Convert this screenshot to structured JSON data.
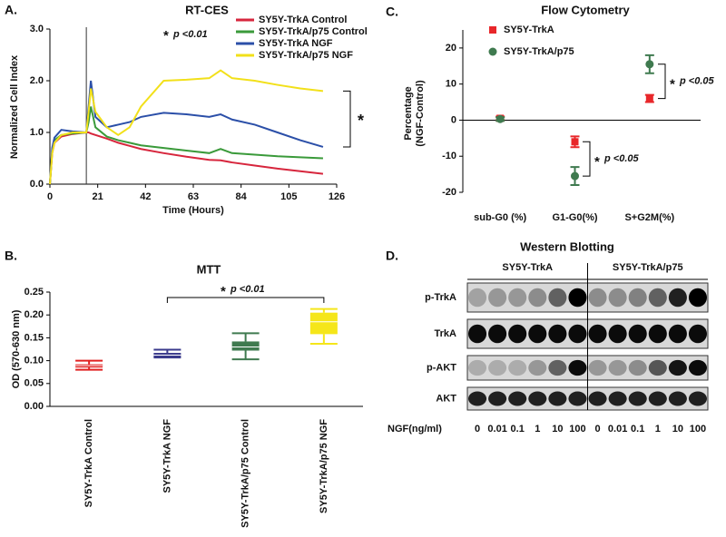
{
  "chart_data": [
    {
      "type": "line",
      "panel": "A.",
      "title": "RT-CES",
      "xlabel": "Time (Hours)",
      "ylabel": "Normalized Cell Index",
      "x": [
        0,
        1,
        2,
        5,
        10,
        16,
        17,
        18,
        20,
        25,
        30,
        35,
        40,
        50,
        60,
        70,
        75,
        80,
        90,
        100,
        110,
        120
      ],
      "series": [
        {
          "name": "SY5Y-TrkA Control",
          "color": "#d7263d",
          "values": [
            0,
            0.6,
            0.8,
            0.92,
            0.97,
            1.0,
            1.0,
            0.98,
            0.95,
            0.88,
            0.8,
            0.74,
            0.68,
            0.6,
            0.53,
            0.47,
            0.46,
            0.42,
            0.36,
            0.3,
            0.25,
            0.2
          ]
        },
        {
          "name": "SY5Y-TrkA/p75 Control",
          "color": "#3a9a3a",
          "values": [
            0,
            0.65,
            0.85,
            0.95,
            0.98,
            1.0,
            1.2,
            1.5,
            1.1,
            0.92,
            0.85,
            0.8,
            0.75,
            0.7,
            0.65,
            0.6,
            0.68,
            0.6,
            0.57,
            0.54,
            0.52,
            0.5
          ]
        },
        {
          "name": "SY5Y-TrkA NGF",
          "color": "#2b4fa8",
          "values": [
            0,
            0.7,
            0.9,
            1.05,
            1.02,
            1.0,
            1.5,
            2.0,
            1.3,
            1.1,
            1.15,
            1.2,
            1.3,
            1.38,
            1.35,
            1.3,
            1.35,
            1.25,
            1.15,
            1.0,
            0.85,
            0.72
          ]
        },
        {
          "name": "SY5Y-TrkA/p75 NGF",
          "color": "#f2e01a",
          "values": [
            0,
            0.6,
            0.8,
            0.95,
            1.0,
            1.0,
            1.4,
            1.85,
            1.4,
            1.1,
            0.95,
            1.1,
            1.5,
            2.0,
            2.02,
            2.05,
            2.2,
            2.05,
            2.0,
            1.92,
            1.85,
            1.8
          ]
        }
      ],
      "xlim": [
        0,
        126
      ],
      "xticks": [
        0,
        21,
        42,
        63,
        84,
        105,
        126
      ],
      "ylim": [
        0,
        3
      ],
      "yticks": [
        {
          "value": 0,
          "label": "0.0"
        },
        {
          "value": 1,
          "label": "1.0"
        },
        {
          "value": 2,
          "label": "2.0"
        },
        {
          "value": 3,
          "label": "3.0"
        }
      ],
      "vline": 16,
      "significance_mark": "*",
      "p_label": "p <0.01",
      "bracket_mark": "*"
    },
    {
      "type": "box",
      "panel": "B.",
      "title": "MTT",
      "ylabel": "OD (570-630 nm)",
      "categories": [
        "SY5Y-TrkA Control",
        "SY5Y-TrkA NGF",
        "SY5Y-TrkA/p75 Control",
        "SY5Y-TrkA/p75 NGF"
      ],
      "colors": [
        "#e02020",
        "#3a3a8c",
        "#3f7a4f",
        "#f5e61a"
      ],
      "boxes": [
        {
          "min": 0.08,
          "q1": 0.085,
          "median": 0.089,
          "q3": 0.092,
          "max": 0.1
        },
        {
          "min": 0.107,
          "q1": 0.108,
          "median": 0.112,
          "q3": 0.117,
          "max": 0.124
        },
        {
          "min": 0.103,
          "q1": 0.122,
          "median": 0.13,
          "q3": 0.142,
          "max": 0.16
        },
        {
          "min": 0.137,
          "q1": 0.158,
          "median": 0.185,
          "q3": 0.205,
          "max": 0.213
        }
      ],
      "ylim": [
        0,
        0.25
      ],
      "yticks": [
        {
          "value": 0,
          "label": "0.00"
        },
        {
          "value": 0.05,
          "label": "0.05"
        },
        {
          "value": 0.1,
          "label": "0.10"
        },
        {
          "value": 0.15,
          "label": "0.15"
        },
        {
          "value": 0.2,
          "label": "0.20"
        },
        {
          "value": 0.25,
          "label": "0.25"
        }
      ],
      "significance_mark": "*",
      "p_label": "p <0.01"
    },
    {
      "type": "errorpoint",
      "panel": "C.",
      "title": "Flow Cytometry",
      "ylabel": [
        "Percentage",
        "(NGF-Control)"
      ],
      "categories": [
        "sub-G0 (%)",
        "G1-G0(%)",
        "S+G2M(%)"
      ],
      "series": [
        {
          "name": "SY5Y-TrkA",
          "color": "#e8272a",
          "marker": "square",
          "values": [
            0.5,
            -6,
            6
          ],
          "errors": [
            0.5,
            1.5,
            1
          ]
        },
        {
          "name": "SY5Y-TrkA/p75",
          "color": "#3f7a4f",
          "marker": "circle",
          "values": [
            0.3,
            -15.5,
            15.5
          ],
          "errors": [
            0.5,
            2.5,
            2.5
          ]
        }
      ],
      "ylim": [
        -20,
        25
      ],
      "yticks": [
        -20,
        -10,
        0,
        10,
        20
      ],
      "significance_mark": "*",
      "p_label": "p <0.05"
    }
  ],
  "western_blot": {
    "panel": "D.",
    "title": "Western Blotting",
    "groups": [
      "SY5Y-TrkA",
      "SY5Y-TrkA/p75"
    ],
    "rows": [
      "p-TrkA",
      "TrkA",
      "p-AKT",
      "AKT"
    ],
    "dose_label": "NGF(ng/ml)",
    "lanes": [
      "0",
      "0.01",
      "0.1",
      "1",
      "10",
      "100",
      "0",
      "0.01",
      "0.1",
      "1",
      "10",
      "100"
    ],
    "band_intensity": [
      [
        0.25,
        0.3,
        0.3,
        0.35,
        0.55,
        1,
        0.35,
        0.35,
        0.4,
        0.55,
        0.85,
        1
      ],
      [
        0.95,
        0.95,
        0.95,
        0.95,
        0.95,
        0.95,
        0.95,
        0.95,
        0.95,
        0.95,
        0.95,
        0.95
      ],
      [
        0.2,
        0.2,
        0.2,
        0.3,
        0.55,
        0.95,
        0.3,
        0.3,
        0.35,
        0.6,
        0.9,
        0.95
      ],
      [
        0.85,
        0.85,
        0.85,
        0.85,
        0.85,
        0.85,
        0.85,
        0.85,
        0.85,
        0.85,
        0.85,
        0.85
      ]
    ]
  }
}
